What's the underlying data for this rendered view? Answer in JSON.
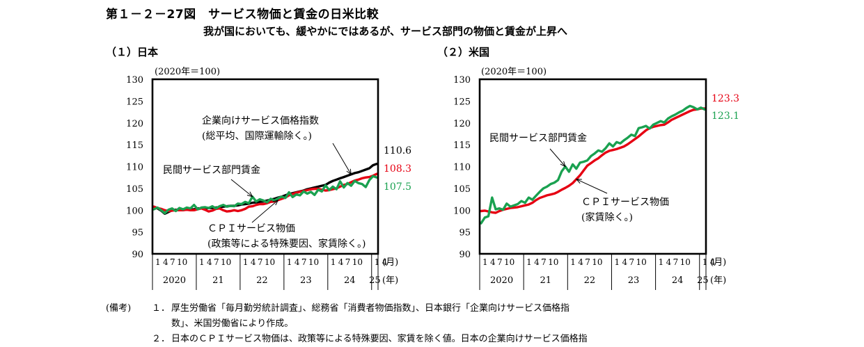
{
  "figure": {
    "title": "第１－２－27図　サービス物価と賃金の日米比較",
    "subtitle": "我が国においても、緩やかにではあるが、サービス部門の物価と賃金が上昇へ"
  },
  "colors": {
    "black": "#000000",
    "red": "#e60012",
    "green": "#1aa150"
  },
  "chart_data": [
    {
      "type": "line",
      "panel_title": "（１）日本",
      "unit_label": "(2020年＝100)",
      "ylim": [
        90,
        130
      ],
      "yticks": [
        "130",
        "125",
        "120",
        "115",
        "110",
        "105",
        "100",
        "95",
        "90"
      ],
      "month_labels": [
        "1",
        "4",
        "7",
        "10"
      ],
      "last_year_month_labels": [
        "1",
        "4"
      ],
      "year_labels": [
        "2020",
        "21",
        "22",
        "23",
        "24",
        "25"
      ],
      "month_axis_label": "(月)",
      "year_axis_label": "(年)",
      "series": [
        {
          "name": "企業向けサービス価格指数（総平均、国際運輸除く。）",
          "label_lines": [
            "企業向けサービス価格指数",
            "(総平均、国際運輸除く。)"
          ],
          "color": "black",
          "end_label": "110.6",
          "values": [
            100.8,
            100.4,
            99.9,
            99.2,
            99.6,
            100.0,
            100.1,
            100.0,
            100.1,
            100.1,
            100.1,
            100.2,
            100.4,
            100.4,
            100.4,
            100.5,
            100.5,
            100.6,
            100.7,
            100.8,
            100.9,
            101.0,
            101.0,
            101.1,
            101.3,
            101.4,
            101.5,
            101.7,
            101.8,
            101.9,
            102.0,
            102.2,
            102.4,
            102.6,
            102.9,
            103.1,
            103.4,
            103.7,
            103.9,
            104.1,
            104.3,
            104.5,
            104.8,
            105.0,
            105.2,
            105.4,
            105.6,
            105.8,
            106.3,
            106.7,
            107.0,
            107.3,
            107.6,
            107.9,
            108.2,
            108.5,
            108.7,
            109.0,
            109.3,
            109.6,
            110.3,
            110.6
          ]
        },
        {
          "name": "ＣＰＩサービス物価（政策等による特殊要因、家賃除く。）",
          "label_lines": [
            "ＣＰＩサービス物価",
            "(政策等による特殊要因、家賃除く。)"
          ],
          "color": "red",
          "end_label": "108.3",
          "values": [
            100.8,
            100.5,
            100.3,
            100.0,
            99.8,
            99.9,
            100.0,
            100.0,
            100.0,
            100.1,
            100.0,
            100.0,
            100.2,
            100.4,
            100.1,
            99.7,
            99.9,
            100.3,
            100.4,
            100.0,
            99.7,
            99.8,
            100.0,
            99.8,
            100.0,
            100.3,
            100.8,
            100.9,
            101.2,
            101.4,
            101.4,
            101.6,
            101.9,
            102.0,
            102.3,
            102.6,
            102.9,
            103.4,
            103.7,
            104.0,
            104.2,
            104.4,
            104.6,
            104.8,
            104.9,
            104.9,
            104.7,
            104.5,
            104.6,
            104.8,
            105.0,
            105.4,
            105.8,
            106.0,
            106.4,
            106.8,
            107.0,
            107.3,
            107.5,
            107.6,
            107.9,
            108.3
          ]
        },
        {
          "name": "民間サービス部門賃金",
          "label_lines": [
            "民間サービス部門賃金"
          ],
          "color": "green",
          "end_label": "107.5",
          "values": [
            100.2,
            100.6,
            100.0,
            99.3,
            100.1,
            100.4,
            99.8,
            100.5,
            100.2,
            100.6,
            100.4,
            101.2,
            100.2,
            100.6,
            100.7,
            100.5,
            100.9,
            100.4,
            100.9,
            101.2,
            100.8,
            101.0,
            100.9,
            101.5,
            101.4,
            101.9,
            101.6,
            103.1,
            102.0,
            102.5,
            102.2,
            101.8,
            102.6,
            102.2,
            102.7,
            103.1,
            102.8,
            104.1,
            103.0,
            103.6,
            103.4,
            104.3,
            103.8,
            104.2,
            103.5,
            104.7,
            104.3,
            105.7,
            104.6,
            105.4,
            104.8,
            106.6,
            105.2,
            106.2,
            105.6,
            106.7,
            106.2,
            106.0,
            105.3,
            106.9,
            107.8,
            107.5
          ]
        }
      ]
    },
    {
      "type": "line",
      "panel_title": "（２）米国",
      "unit_label": "(2020年＝100)",
      "ylim": [
        90,
        130
      ],
      "yticks": [
        "130",
        "125",
        "120",
        "115",
        "110",
        "105",
        "100",
        "95",
        "90"
      ],
      "month_labels": [
        "1",
        "4",
        "7",
        "10"
      ],
      "last_year_month_labels": [
        "1",
        "4"
      ],
      "year_labels": [
        "2020",
        "21",
        "22",
        "23",
        "24",
        "25"
      ],
      "month_axis_label": "(月)",
      "year_axis_label": "(年)",
      "series": [
        {
          "name": "ＣＰＩサービス物価（家賃除く。）",
          "label_lines": [
            "ＣＰＩサービス物価",
            "(家賃除く。)"
          ],
          "color": "red",
          "end_label": "123.3",
          "values": [
            99.8,
            99.9,
            99.7,
            99.5,
            99.4,
            99.8,
            100.1,
            100.3,
            100.5,
            100.6,
            100.7,
            100.9,
            101.1,
            101.3,
            101.7,
            102.3,
            102.8,
            103.1,
            103.4,
            103.6,
            103.8,
            104.2,
            104.7,
            105.1,
            105.6,
            106.2,
            107.1,
            108.0,
            109.1,
            110.2,
            110.8,
            111.4,
            111.9,
            112.6,
            113.2,
            113.6,
            113.8,
            114.0,
            114.3,
            114.6,
            115.1,
            115.7,
            116.3,
            116.9,
            117.6,
            118.3,
            118.8,
            119.1,
            119.3,
            119.5,
            119.6,
            120.1,
            120.7,
            121.1,
            121.5,
            121.9,
            122.3,
            122.7,
            123.0,
            123.1,
            123.3,
            123.3
          ]
        },
        {
          "name": "民間サービス部門賃金",
          "label_lines": [
            "民間サービス部門賃金"
          ],
          "color": "green",
          "end_label": "123.1",
          "values": [
            97.0,
            98.3,
            98.6,
            102.9,
            100.2,
            100.4,
            100.1,
            101.5,
            100.8,
            101.1,
            101.4,
            102.1,
            101.7,
            102.9,
            102.4,
            103.3,
            104.2,
            105.0,
            105.4,
            106.0,
            106.3,
            106.9,
            108.9,
            110.0,
            108.8,
            110.5,
            109.5,
            110.9,
            111.1,
            111.4,
            112.4,
            113.0,
            113.7,
            113.4,
            114.2,
            115.3,
            114.6,
            115.6,
            115.3,
            116.0,
            116.6,
            117.3,
            117.0,
            118.8,
            119.0,
            119.3,
            118.7,
            119.6,
            120.0,
            120.4,
            120.1,
            121.0,
            121.5,
            121.9,
            122.4,
            122.8,
            123.4,
            123.9,
            123.6,
            123.1,
            123.5,
            123.1
          ]
        }
      ]
    }
  ],
  "notes": {
    "label": "(備考)",
    "items": [
      {
        "num": "１．",
        "lines": [
          "厚生労働省「毎月勤労統計調査」、総務省「消費者物価指数」、日本銀行「企業向けサービス価格指",
          "数」、米国労働省により作成。"
        ]
      },
      {
        "num": "２．",
        "lines": [
          "日本のＣＰＩサービス物価は、政策等による特殊要因、家賃を除く値。日本の企業向けサービス価格指"
        ]
      }
    ]
  }
}
